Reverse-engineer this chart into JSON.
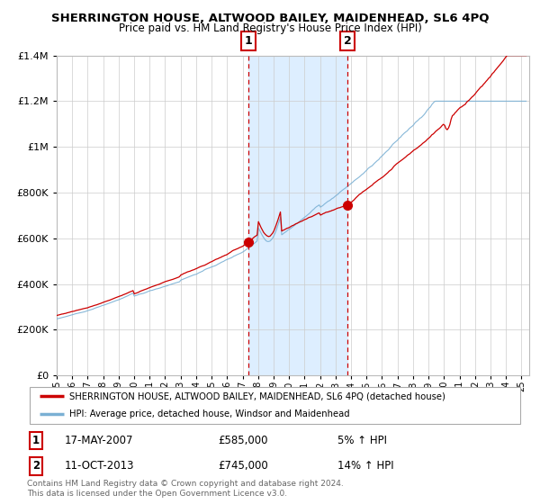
{
  "title": "SHERRINGTON HOUSE, ALTWOOD BAILEY, MAIDENHEAD, SL6 4PQ",
  "subtitle": "Price paid vs. HM Land Registry's House Price Index (HPI)",
  "legend_line1": "SHERRINGTON HOUSE, ALTWOOD BAILEY, MAIDENHEAD, SL6 4PQ (detached house)",
  "legend_line2": "HPI: Average price, detached house, Windsor and Maidenhead",
  "sale1_date": "17-MAY-2007",
  "sale1_price": "£585,000",
  "sale1_hpi": "5% ↑ HPI",
  "sale2_date": "11-OCT-2013",
  "sale2_price": "£745,000",
  "sale2_hpi": "14% ↑ HPI",
  "copyright": "Contains HM Land Registry data © Crown copyright and database right 2024.\nThis data is licensed under the Open Government Licence v3.0.",
  "red_color": "#cc0000",
  "blue_color": "#7ab0d4",
  "shade_color": "#ddeeff",
  "grid_color": "#cccccc",
  "ylim": [
    0,
    1400000
  ],
  "yticks": [
    0,
    200000,
    400000,
    600000,
    800000,
    1000000,
    1200000,
    1400000
  ],
  "sale1_x": 2007.38,
  "sale1_y": 585000,
  "sale2_x": 2013.78,
  "sale2_y": 745000,
  "shade_x1": 2007.38,
  "shade_x2": 2013.78,
  "xmin": 1995,
  "xmax": 2025.5
}
